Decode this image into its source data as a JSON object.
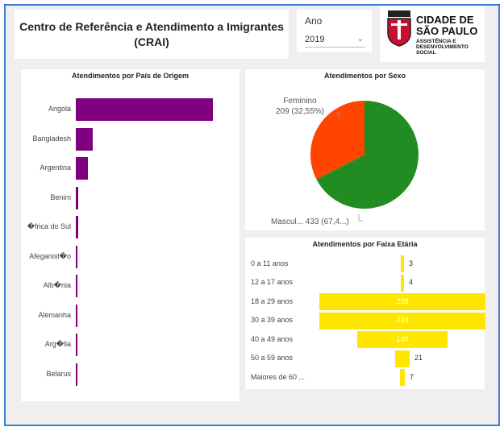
{
  "header": {
    "title_line1": "Centro de Referência e Atendimento a Imigrantes",
    "title_line2": "(CRAI)"
  },
  "filter": {
    "label": "Ano",
    "value": "2019"
  },
  "logo": {
    "line1": "CIDADE DE",
    "line2": "SÃO PAULO",
    "line3": "ASSISTÊNCIA E",
    "line4": "DESENVOLVIMENTO",
    "line5": "SOCIAL"
  },
  "colors": {
    "pais_bar": "#800080",
    "sexo_feminino": "#ff4500",
    "sexo_masculino": "#228b22",
    "faixa_bar": "#ffe600",
    "frame_border": "#3a7bd5"
  },
  "chart_data": [
    {
      "type": "bar",
      "title": "Atendimentos por País de Origem",
      "categories": [
        "Angola",
        "Bangladesh",
        "Argentina",
        "Benim",
        "�frica do Sul",
        "Afeganist�o",
        "Alb�nia",
        "Alemanha",
        "Arg�lia",
        "Belarus"
      ],
      "values": [
        58,
        7,
        5,
        1,
        1,
        0.3,
        0.3,
        0.3,
        0.3,
        0.3
      ],
      "orientation": "horizontal"
    },
    {
      "type": "pie",
      "title": "Atendimentos por Sexo",
      "labels": [
        "Feminino",
        "Mascul..."
      ],
      "values": [
        209,
        433
      ],
      "label_text": [
        "209 (32,55%)",
        "433 (67,4...)"
      ]
    },
    {
      "type": "bar",
      "title": "Atendimentos por Faixa Etária",
      "categories": [
        "0 a 11 anos",
        "12 a 17 anos",
        "18 a 29 anos",
        "30 a 39 anos",
        "40 a 49 anos",
        "50 a 59 anos",
        "Maiores de 60 ..."
      ],
      "values": [
        3,
        4,
        238,
        239,
        130,
        21,
        7
      ],
      "orientation": "funnel"
    }
  ]
}
